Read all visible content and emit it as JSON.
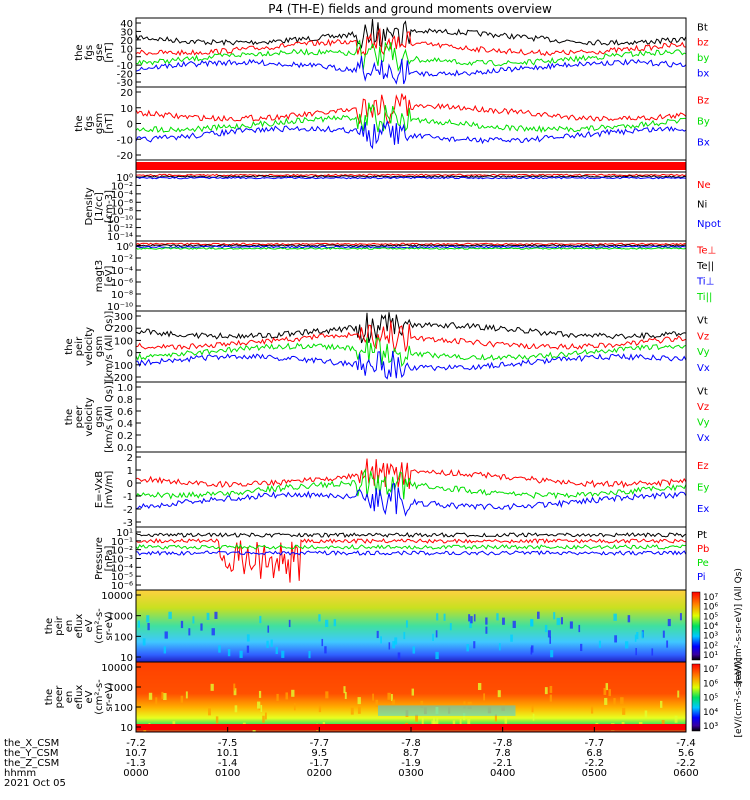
{
  "title": "P4 (TH-E) fields and ground moments overview",
  "colors": {
    "black": "#000000",
    "red": "#ff0000",
    "green": "#00e000",
    "blue": "#0000ff"
  },
  "chart_data": [
    {
      "type": "line",
      "ylabel": [
        "the",
        "fgs",
        "gse",
        "[nT]"
      ],
      "yticks": [
        "40",
        "30",
        "20",
        "10",
        "0",
        "-10",
        "-20",
        "-30"
      ],
      "ylim": [
        -30,
        40
      ],
      "legend": [
        {
          "label": "Bt",
          "color": "black"
        },
        {
          "label": "bz",
          "color": "red"
        },
        {
          "label": "by",
          "color": "green"
        },
        {
          "label": "bx",
          "color": "blue"
        }
      ]
    },
    {
      "type": "line",
      "ylabel": [
        "the",
        "fgs",
        "gsm",
        "[nT]"
      ],
      "yticks": [
        "20",
        "10",
        "0",
        "-10",
        "-20"
      ],
      "ylim": [
        -20,
        20
      ],
      "legend": [
        {
          "label": "Bz",
          "color": "red"
        },
        {
          "label": "By",
          "color": "green"
        },
        {
          "label": "Bx",
          "color": "blue"
        }
      ]
    },
    {
      "type": "line",
      "ylabel": [
        "Density",
        "[1/cc]",
        "[cm-3]"
      ],
      "yticks": [
        "10⁰",
        "10⁻²",
        "10⁻⁴",
        "10⁻⁶",
        "10⁻⁸",
        "10⁻¹⁰",
        "10⁻¹²",
        "10⁻¹⁴"
      ],
      "yscale": "log",
      "legend": [
        {
          "label": "Ne",
          "color": "red"
        },
        {
          "label": "Ni",
          "color": "black"
        },
        {
          "label": "Npot",
          "color": "blue"
        }
      ]
    },
    {
      "type": "line",
      "ylabel": [
        "magt3",
        "[eV]"
      ],
      "yticks": [
        "10⁰",
        "10⁻²",
        "10⁻⁴",
        "10⁻⁶",
        "10⁻⁸",
        "10⁻¹⁰"
      ],
      "yscale": "log",
      "legend": [
        {
          "label": "Te⊥",
          "color": "red"
        },
        {
          "label": "Te||",
          "color": "black"
        },
        {
          "label": "Ti⊥",
          "color": "blue"
        },
        {
          "label": "Ti||",
          "color": "green"
        }
      ]
    },
    {
      "type": "line",
      "ylabel": [
        "the",
        "peir",
        "velocity",
        "gsm",
        "[km/s (All Qs)]"
      ],
      "yticks": [
        "300",
        "200",
        "100",
        "0",
        "-100",
        "-200"
      ],
      "ylim": [
        -200,
        300
      ],
      "legend": [
        {
          "label": "Vt",
          "color": "black"
        },
        {
          "label": "Vz",
          "color": "red"
        },
        {
          "label": "Vy",
          "color": "green"
        },
        {
          "label": "Vx",
          "color": "blue"
        }
      ]
    },
    {
      "type": "line",
      "ylabel": [
        "the",
        "peer",
        "velocity",
        "gsm",
        "[km/s (All Qs)]"
      ],
      "yticks": [
        "1.0",
        "0.8",
        "0.6",
        "0.4",
        "0.2",
        "0.0"
      ],
      "ylim": [
        0,
        1
      ],
      "legend": [
        {
          "label": "Vt",
          "color": "black"
        },
        {
          "label": "Vz",
          "color": "red"
        },
        {
          "label": "Vy",
          "color": "green"
        },
        {
          "label": "Vx",
          "color": "blue"
        }
      ]
    },
    {
      "type": "line",
      "ylabel": [
        "E=-VxB",
        "[mV/m]"
      ],
      "yticks": [
        "2",
        "1",
        "0",
        "-1",
        "-2",
        "-3"
      ],
      "ylim": [
        -3,
        2
      ],
      "legend": [
        {
          "label": "Ez",
          "color": "red"
        },
        {
          "label": "Ey",
          "color": "green"
        },
        {
          "label": "Ex",
          "color": "blue"
        }
      ]
    },
    {
      "type": "line",
      "ylabel": [
        "Pressure",
        "[nPa]"
      ],
      "yticks": [
        "10¹",
        "10⁻¹",
        "10⁻²",
        "10⁻³",
        "10⁻⁴",
        "10⁻⁵",
        "10⁻⁶"
      ],
      "yscale": "log",
      "legend": [
        {
          "label": "Pt",
          "color": "black"
        },
        {
          "label": "Pb",
          "color": "red"
        },
        {
          "label": "Pe",
          "color": "green"
        },
        {
          "label": "Pi",
          "color": "blue"
        }
      ]
    },
    {
      "type": "heatmap",
      "ylabel": [
        "the",
        "peir",
        "en",
        "eflux",
        "eV",
        "(cm²-s-",
        "sr-eV)"
      ],
      "yticks": [
        "10000",
        "1000",
        "100",
        "10"
      ],
      "yscale": "log"
    },
    {
      "type": "heatmap",
      "ylabel": [
        "the",
        "peer",
        "en",
        "eflux",
        "eV",
        "(cm²-s-",
        "sr-eV)"
      ],
      "yticks": [
        "10000",
        "1000",
        "100",
        "10"
      ],
      "yscale": "log"
    }
  ],
  "colorbar_top": {
    "ticks": [
      "10⁷",
      "10⁶",
      "10⁵",
      "10⁴",
      "10³",
      "10²",
      "10¹"
    ],
    "label": "[eV/(cm²-s-sr-eV)] (All Qs)"
  },
  "colorbar_bottom": {
    "ticks": [
      "10⁷",
      "10⁶",
      "10⁵",
      "10⁴",
      "10³"
    ],
    "label": "[eV/(cm²-s-sr-eV)]"
  },
  "xaxis": {
    "row_labels": [
      "the_X_CSM",
      "the_Y_CSM",
      "the_Z_CSM",
      "hhmm",
      "2021 Oct 05"
    ],
    "columns": [
      {
        "x": "-7.2",
        "y": "10.7",
        "z": "-1.3",
        "time": "0000"
      },
      {
        "x": "-7.5",
        "y": "10.1",
        "z": "-1.4",
        "time": "0100"
      },
      {
        "x": "-7.7",
        "y": "9.5",
        "z": "-1.7",
        "time": "0200"
      },
      {
        "x": "-7.8",
        "y": "8.7",
        "z": "-1.9",
        "time": "0300"
      },
      {
        "x": "-7.8",
        "y": "7.8",
        "z": "-2.1",
        "time": "0400"
      },
      {
        "x": "-7.7",
        "y": "6.8",
        "z": "-2.2",
        "time": "0500"
      },
      {
        "x": "-7.4",
        "y": "5.6",
        "z": "-2.2",
        "time": "0600"
      }
    ]
  }
}
